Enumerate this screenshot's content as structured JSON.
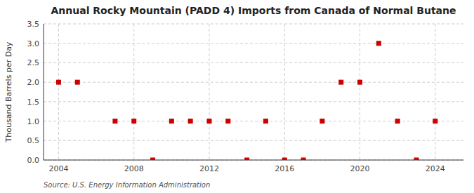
{
  "chart_data": {
    "type": "scatter",
    "title": "Annual Rocky Mountain (PADD 4) Imports from Canada of Normal Butane",
    "ylabel": "Thousand Barrels per Day",
    "annotations": [
      "Source: U.S. Energy Information Administration"
    ],
    "x": [
      2004,
      2005,
      2006,
      2007,
      2008,
      2009,
      2010,
      2011,
      2012,
      2013,
      2014,
      2015,
      2016,
      2017,
      2018,
      2019,
      2020,
      2021,
      2022,
      2023,
      2024
    ],
    "values": [
      2.0,
      2.0,
      null,
      1.0,
      1.0,
      0.0,
      1.0,
      1.0,
      1.0,
      1.0,
      0.0,
      1.0,
      0.0,
      0.0,
      1.0,
      2.0,
      2.0,
      3.0,
      1.0,
      0.0,
      1.0
    ],
    "color": "#cc0000",
    "marker": "square",
    "xlim": [
      2003.2,
      2025.5
    ],
    "xticks": [
      2004,
      2008,
      2012,
      2016,
      2020,
      2024
    ],
    "ylim": [
      0.0,
      3.5
    ],
    "yticks": [
      {
        "value": 0.0,
        "label": "0.0"
      },
      0.5,
      {
        "value": 1.0,
        "label": "1.0"
      },
      1.5,
      {
        "value": 2.0,
        "label": "2.0"
      },
      2.5,
      {
        "value": 3.0,
        "label": "3.0"
      },
      3.5
    ],
    "grid": true
  }
}
